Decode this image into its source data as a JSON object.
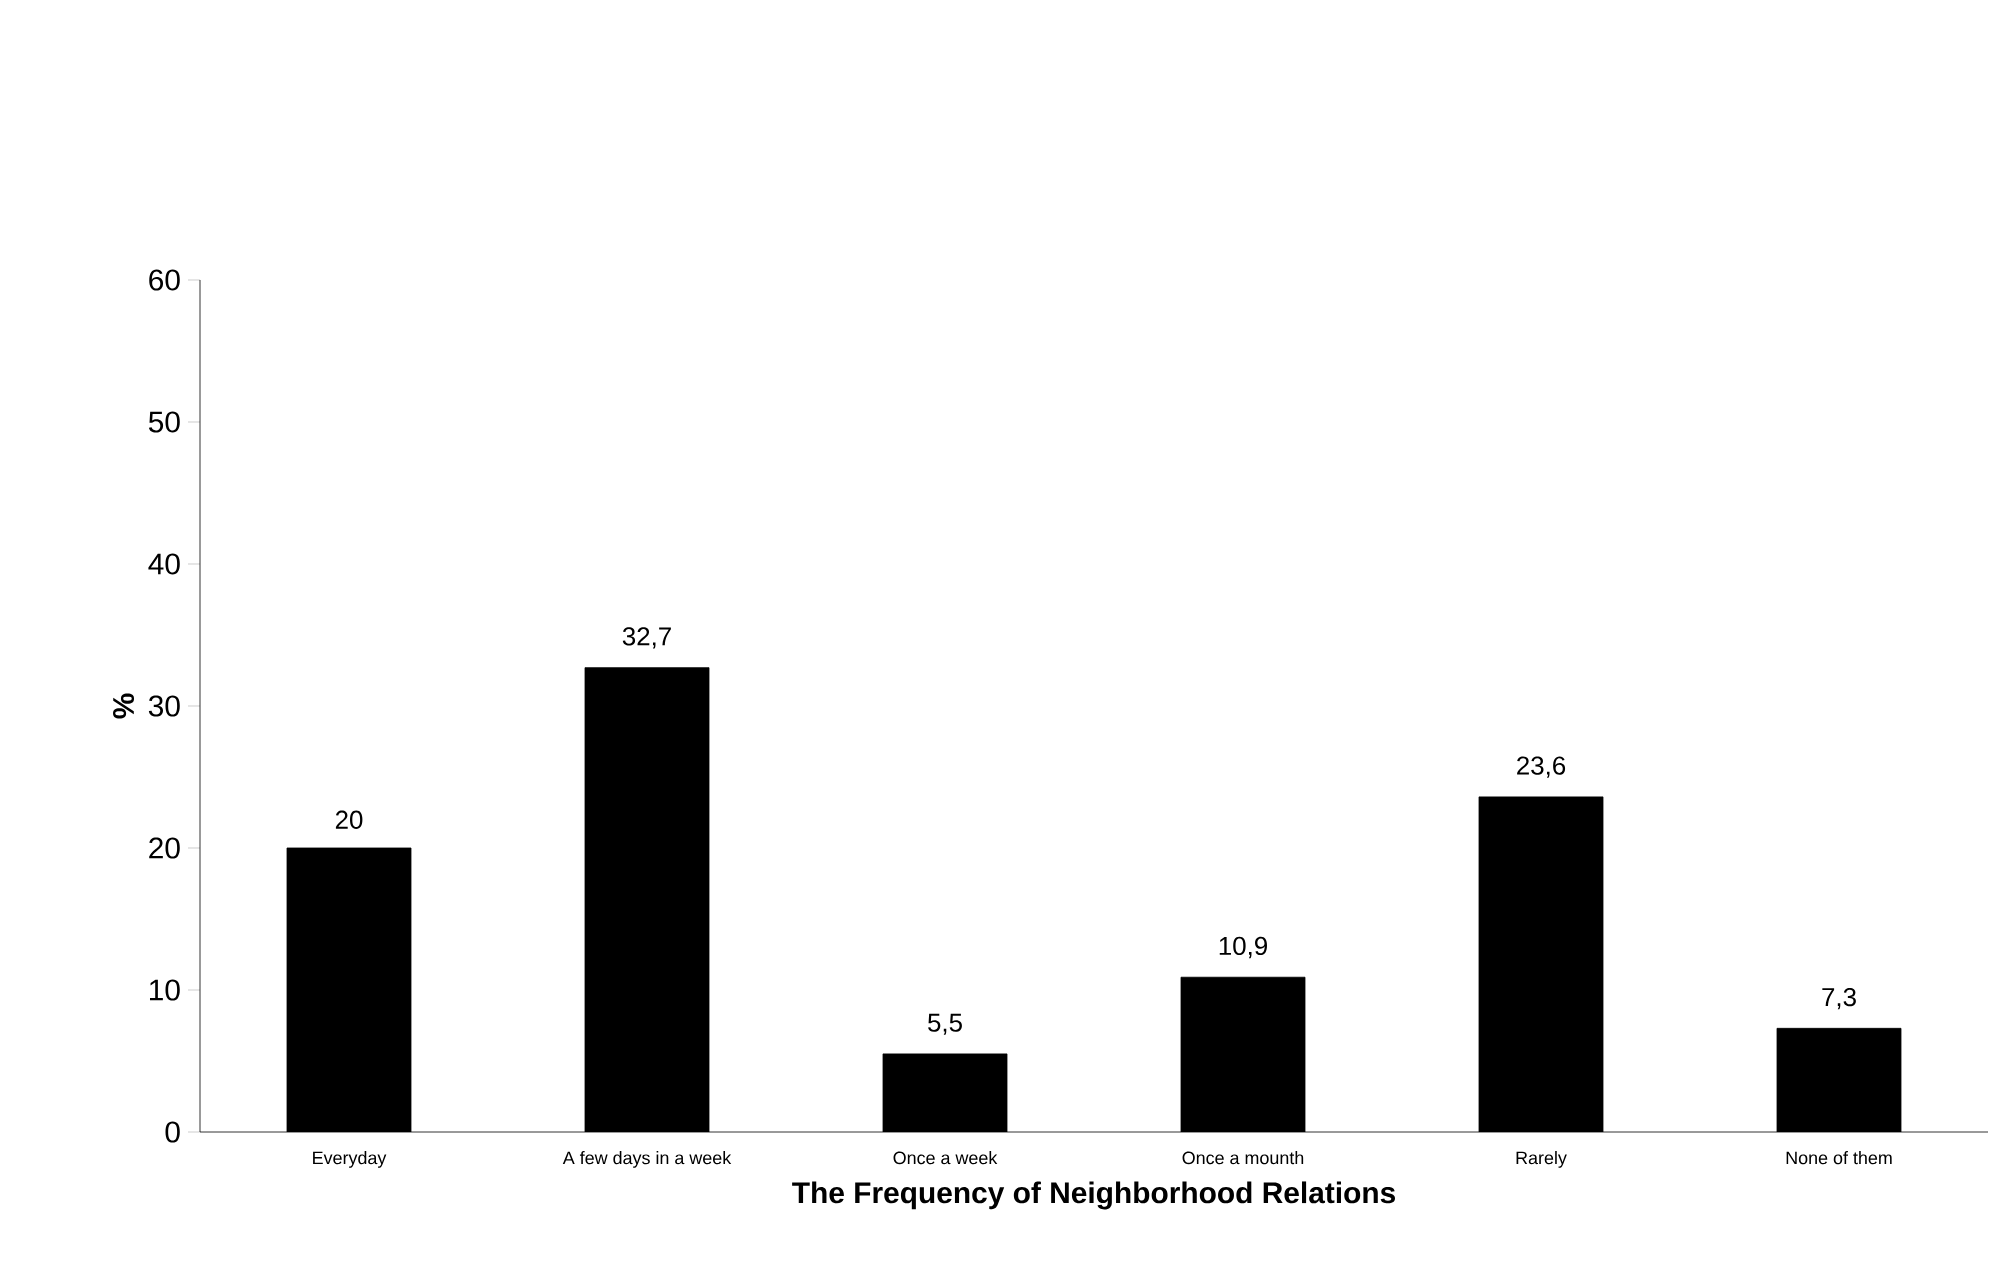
{
  "chart_data": {
    "type": "bar",
    "xlabel": "The Frequency of Neighborhood Relations",
    "ylabel": "%",
    "categories": [
      "Everyday",
      "A few days in a week",
      "Once a week",
      "Once a mounth",
      "Rarely",
      "None of them"
    ],
    "values": [
      20,
      32.7,
      5.5,
      10.9,
      23.6,
      7.3
    ],
    "value_labels": [
      "20",
      "32,7",
      "5,5",
      "10,9",
      "23,6",
      "7,3"
    ],
    "color": "#000000",
    "ylim": [
      0,
      60
    ],
    "yticks": [
      0,
      10,
      20,
      30,
      40,
      50,
      60
    ]
  }
}
